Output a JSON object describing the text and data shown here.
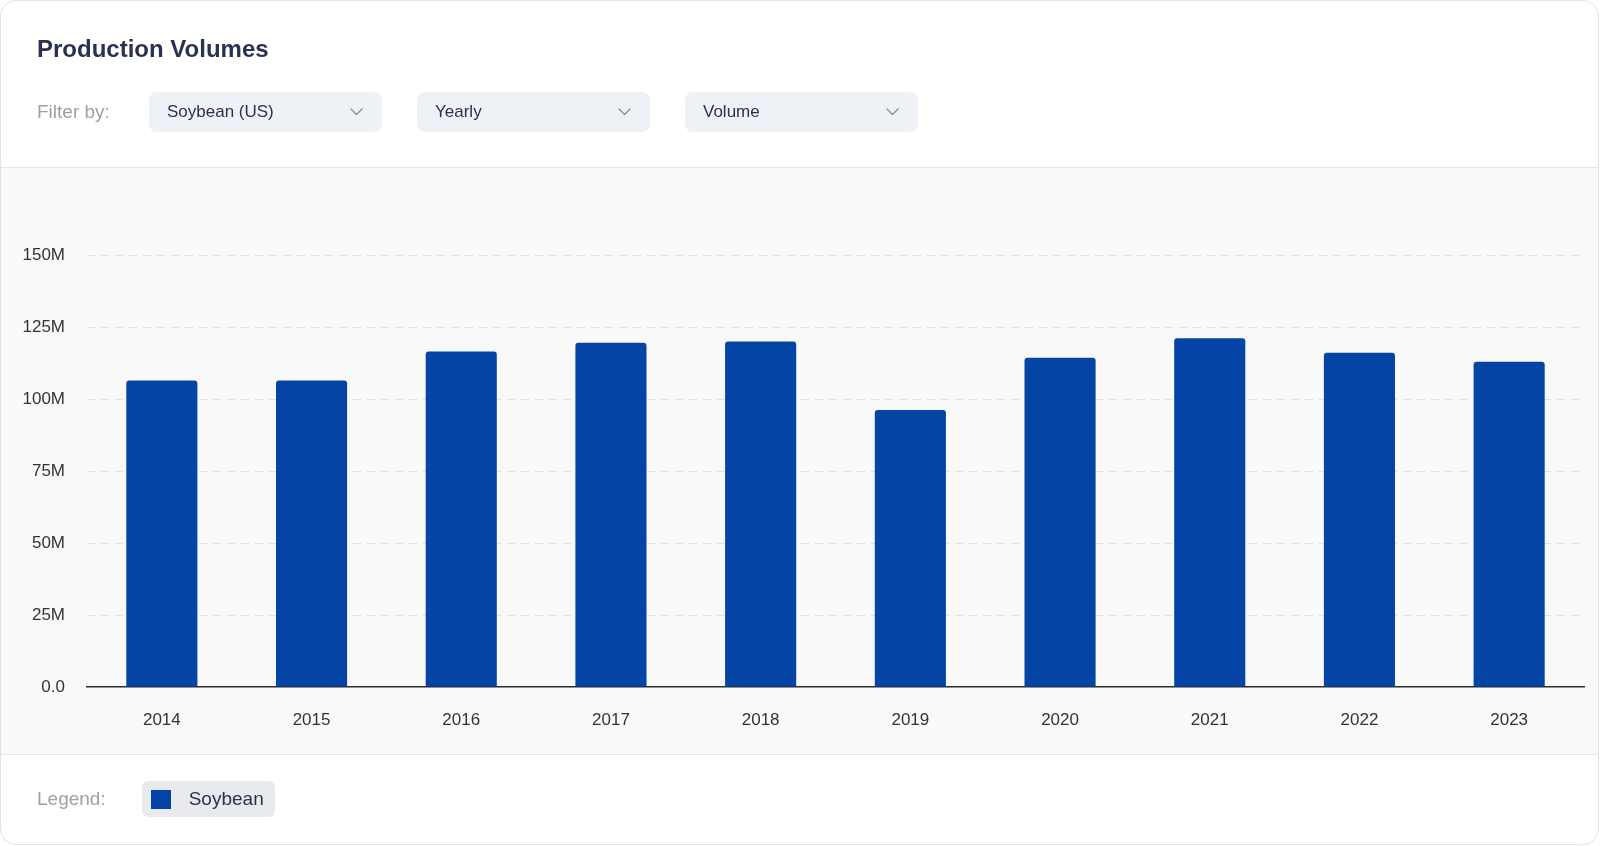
{
  "chart_data": {
    "type": "bar",
    "title": "Production Volumes",
    "annotations": [
      "Filter by:",
      "Soybean (US)",
      "Yearly",
      "Volume"
    ],
    "legend_title": "Legend:",
    "categories": [
      "2014",
      "2015",
      "2016",
      "2017",
      "2018",
      "2019",
      "2020",
      "2021",
      "2022",
      "2023"
    ],
    "series": [
      {
        "name": "Soybean",
        "color": "#0444a4",
        "values": [
          106.4,
          106.4,
          116.5,
          119.5,
          120.0,
          96.2,
          114.3,
          121.1,
          116.1,
          112.9
        ]
      }
    ],
    "ylim": [
      0,
      150
    ],
    "yticks": [
      {
        "value": 0,
        "label": "0.0"
      },
      {
        "value": 25,
        "label": "25M"
      },
      {
        "value": 50,
        "label": "50M"
      },
      {
        "value": 75,
        "label": "75M"
      },
      {
        "value": 100,
        "label": "100M"
      },
      {
        "value": 125,
        "label": "125M"
      },
      {
        "value": 150,
        "label": "150M"
      }
    ],
    "grid": "y",
    "legend": "bottom left"
  }
}
